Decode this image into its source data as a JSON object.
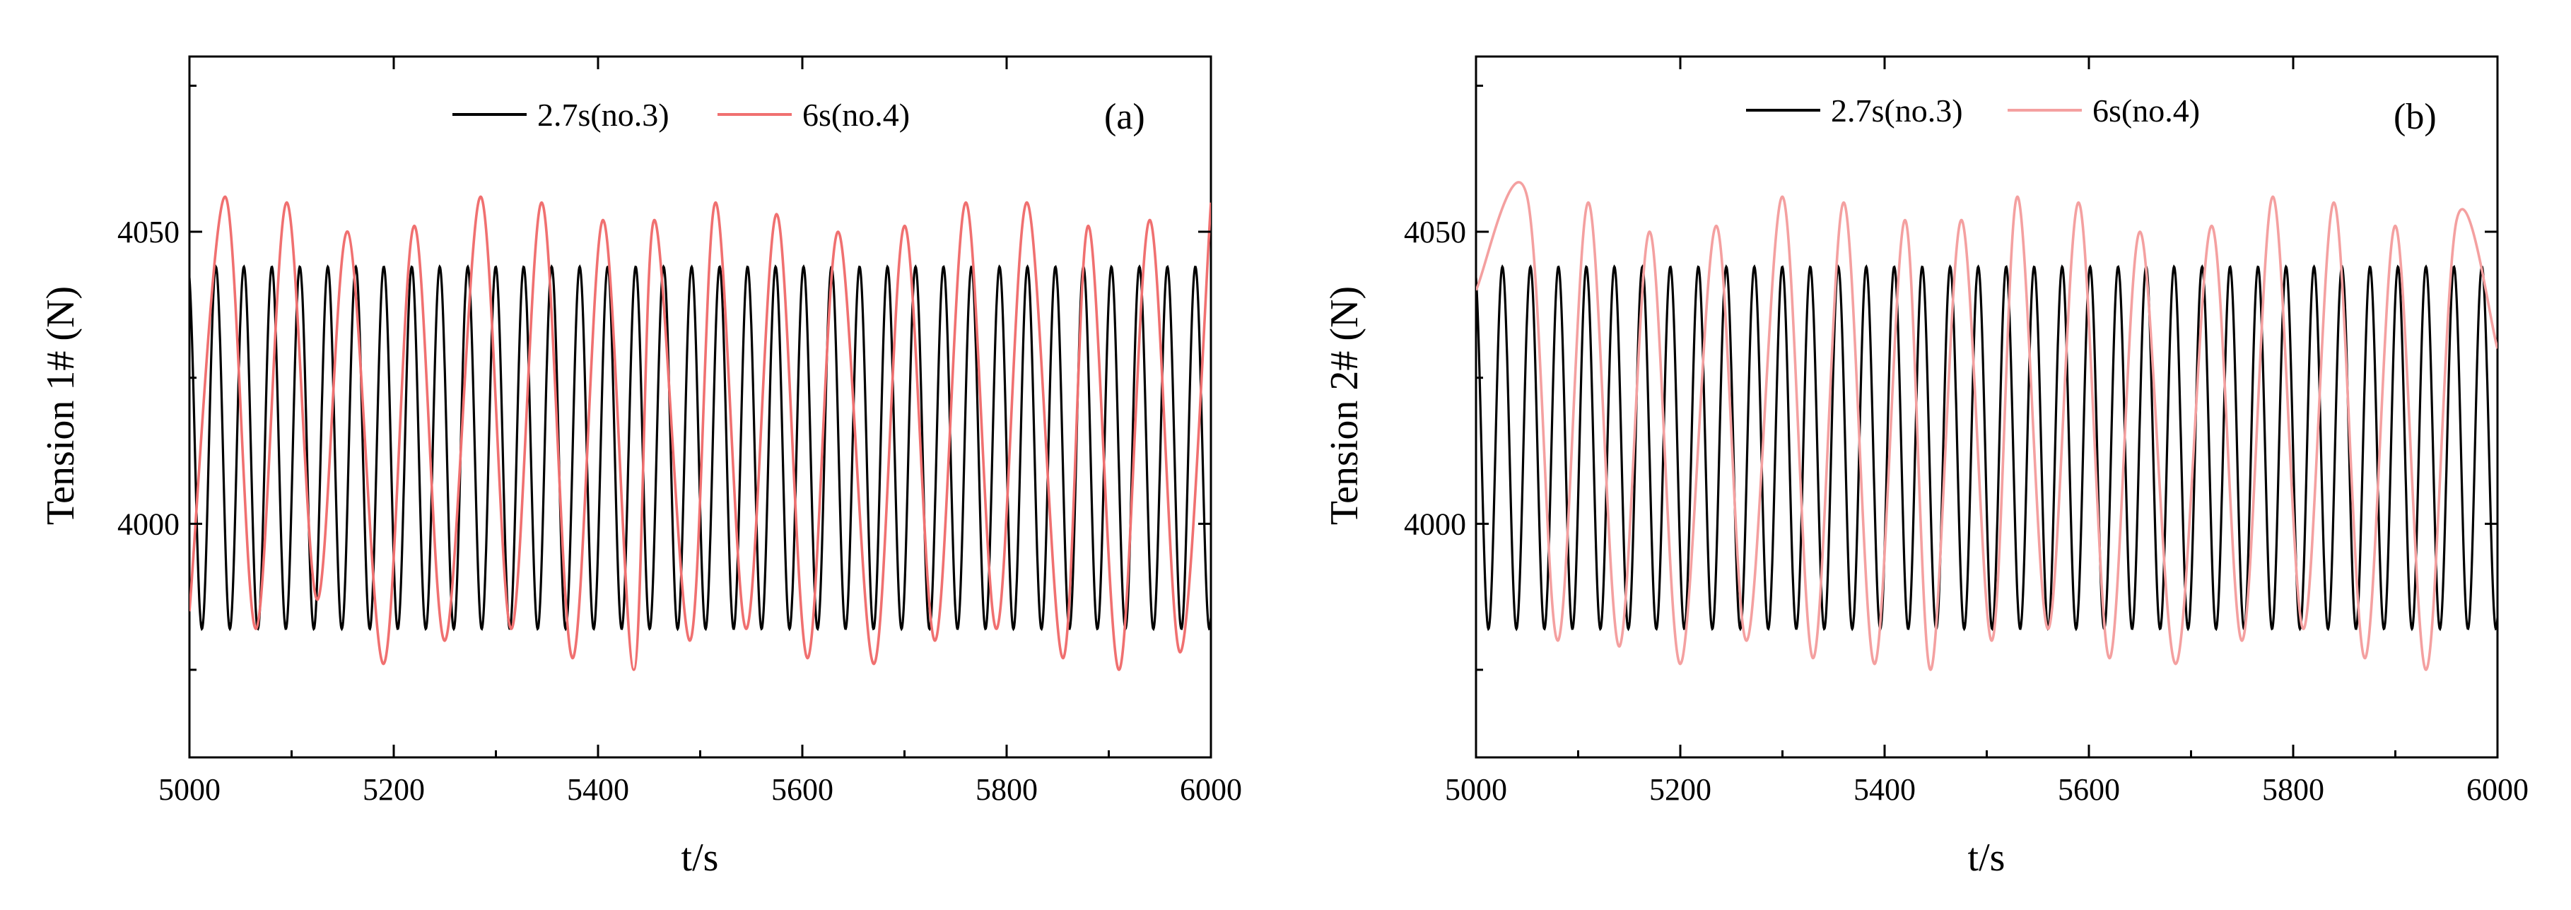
{
  "figure": {
    "panels": [
      {
        "panel_label": "(a)",
        "xlabel": "t/s",
        "ylabel": "Tension 1# (N)",
        "legend": [
          "2.7s(no.3)",
          "6s(no.4)"
        ],
        "series_colors": [
          "#000000",
          "#f07070"
        ]
      },
      {
        "panel_label": "(b)",
        "xlabel": "t/s",
        "ylabel": "Tension 2# (N)",
        "legend": [
          "2.7s(no.3)",
          "6s(no.4)"
        ],
        "series_colors": [
          "#000000",
          "#f4a0a0"
        ]
      }
    ]
  },
  "chart_data": [
    {
      "type": "line",
      "title": "",
      "panel_label": "(a)",
      "xlabel": "t/s",
      "ylabel": "Tension 1# (N)",
      "xlim": [
        5000,
        6000
      ],
      "ylim": [
        3960,
        4080
      ],
      "xticks": [
        5000,
        5200,
        5400,
        5600,
        5800,
        6000
      ],
      "yticks": [
        4000,
        4050
      ],
      "legend_position": "top",
      "series": [
        {
          "name": "2.7s(no.3)",
          "color": "#000000",
          "kind": "sinusoid",
          "period": 2.7,
          "mean": 4013,
          "min": 3982,
          "max": 4044,
          "note": "sampled view: ~37 visible cycles across 1000 s"
        },
        {
          "name": "6s(no.4)",
          "color": "#f07070",
          "kind": "sinusoid",
          "period": 6,
          "sampled_x": [
            5000,
            5035,
            5065,
            5095,
            5125,
            5155,
            5190,
            5220,
            5250,
            5285,
            5315,
            5345,
            5375,
            5405,
            5435,
            5455,
            5490,
            5515,
            5545,
            5575,
            5605,
            5635,
            5670,
            5700,
            5730,
            5760,
            5790,
            5820,
            5855,
            5880,
            5910,
            5940,
            5970,
            6000
          ],
          "sampled_y": [
            3985,
            4056,
            3982,
            4055,
            3987,
            4050,
            3976,
            4051,
            3980,
            4056,
            3982,
            4055,
            3977,
            4052,
            3975,
            4052,
            3980,
            4055,
            3982,
            4053,
            3977,
            4050,
            3976,
            4051,
            3980,
            4055,
            3982,
            4055,
            3977,
            4051,
            3975,
            4052,
            3978,
            4055
          ]
        }
      ]
    },
    {
      "type": "line",
      "title": "",
      "panel_label": "(b)",
      "xlabel": "t/s",
      "ylabel": "Tension 2# (N)",
      "xlim": [
        5000,
        6000
      ],
      "ylim": [
        3960,
        4080
      ],
      "xticks": [
        5000,
        5200,
        5400,
        5600,
        5800,
        6000
      ],
      "yticks": [
        4000,
        4050
      ],
      "legend_position": "top",
      "series": [
        {
          "name": "2.7s(no.3)",
          "color": "#000000",
          "kind": "sinusoid",
          "period": 2.7,
          "mean": 4013,
          "min": 3982,
          "max": 4044,
          "note": "sampled view: ~37 visible cycles across 1000 s"
        },
        {
          "name": "6s(no.4)",
          "color": "#f4a0a0",
          "kind": "sinusoid",
          "period": 6,
          "sampled_x": [
            5000,
            5050,
            5080,
            5110,
            5140,
            5170,
            5200,
            5235,
            5265,
            5300,
            5330,
            5360,
            5390,
            5420,
            5445,
            5475,
            5505,
            5530,
            5560,
            5590,
            5620,
            5650,
            5685,
            5720,
            5750,
            5780,
            5810,
            5840,
            5870,
            5900,
            5930,
            5960,
            6000
          ],
          "sampled_y": [
            4040,
            4056,
            3980,
            4055,
            3979,
            4050,
            3976,
            4051,
            3980,
            4056,
            3977,
            4055,
            3976,
            4052,
            3975,
            4052,
            3980,
            4056,
            3982,
            4055,
            3977,
            4050,
            3976,
            4051,
            3980,
            4056,
            3982,
            4055,
            3977,
            4051,
            3975,
            4052,
            4030
          ]
        }
      ]
    }
  ]
}
